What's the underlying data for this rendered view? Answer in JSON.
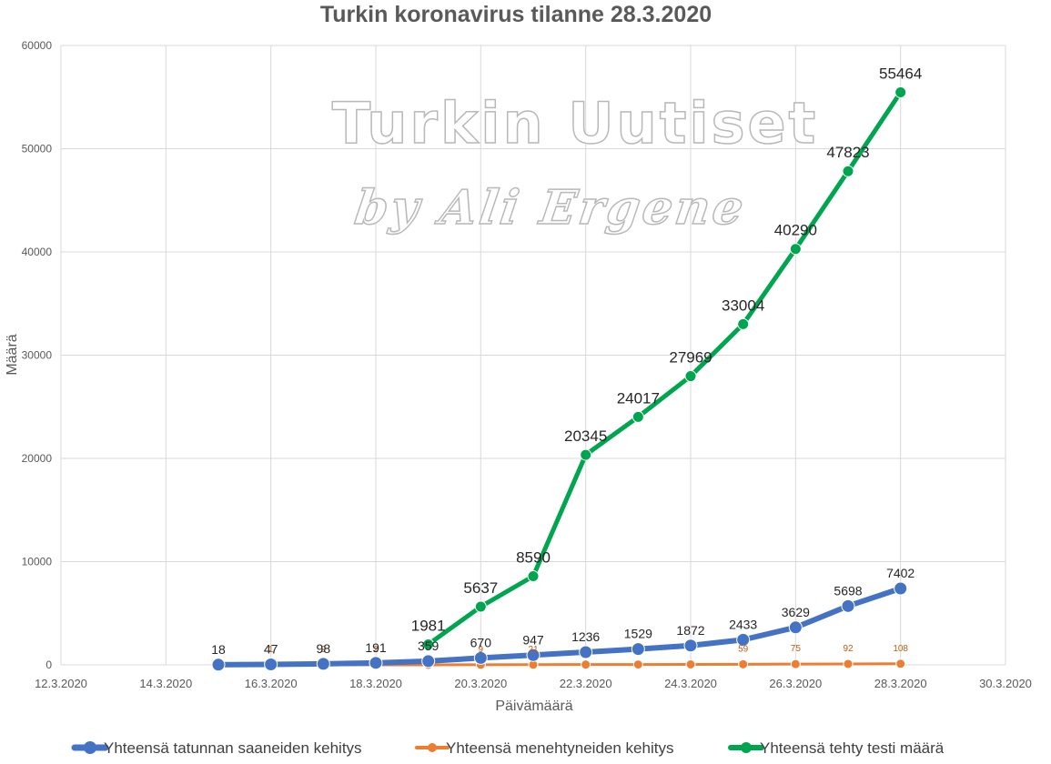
{
  "chart_data": {
    "type": "line",
    "title": "Turkin koronavirus tilanne 28.3.2020",
    "xlabel": "Päivämäärä",
    "ylabel": "Määrä",
    "ylim": [
      0,
      60000
    ],
    "yticks": [
      0,
      10000,
      20000,
      30000,
      40000,
      50000,
      60000
    ],
    "xticks": [
      "12.3.2020",
      "14.3.2020",
      "16.3.2020",
      "18.3.2020",
      "20.3.2020",
      "22.3.2020",
      "24.3.2020",
      "26.3.2020",
      "28.3.2020",
      "30.3.2020"
    ],
    "grid": true,
    "legend_position": "bottom",
    "series": [
      {
        "name": "Yhteensä tatunnan saaneiden kehitys",
        "color": "#4472c4",
        "x": [
          "15.3.2020",
          "16.3.2020",
          "17.3.2020",
          "18.3.2020",
          "19.3.2020",
          "20.3.2020",
          "21.3.2020",
          "22.3.2020",
          "23.3.2020",
          "24.3.2020",
          "25.3.2020",
          "26.3.2020",
          "27.3.2020",
          "28.3.2020"
        ],
        "values": [
          18,
          47,
          98,
          191,
          359,
          670,
          947,
          1236,
          1529,
          1872,
          2433,
          3629,
          5698,
          7402
        ]
      },
      {
        "name": "Yhteensä menehtyneiden kehitys",
        "color": "#ed7d31",
        "x": [
          "16.3.2020",
          "17.3.2020",
          "18.3.2020",
          "19.3.2020",
          "20.3.2020",
          "21.3.2020",
          "22.3.2020",
          "23.3.2020",
          "24.3.2020",
          "25.3.2020",
          "26.3.2020",
          "27.3.2020",
          "28.3.2020"
        ],
        "values": [
          1,
          2,
          2,
          4,
          9,
          21,
          30,
          37,
          44,
          59,
          75,
          92,
          108
        ],
        "labels": [
          "1",
          "2",
          "2",
          "",
          "9",
          "21",
          "",
          "",
          "",
          "59",
          "75",
          "92",
          "108"
        ]
      },
      {
        "name": "Yhteensä tehty testi määrä",
        "color": "#00a550",
        "x": [
          "19.3.2020",
          "20.3.2020",
          "21.3.2020",
          "22.3.2020",
          "23.3.2020",
          "24.3.2020",
          "25.3.2020",
          "26.3.2020",
          "27.3.2020",
          "28.3.2020"
        ],
        "values": [
          1981,
          5637,
          8590,
          20345,
          24017,
          27969,
          33004,
          40290,
          47823,
          55464
        ]
      }
    ]
  },
  "watermark": {
    "line1": "Turkin Uutiset",
    "line2": "by Ali Ergene"
  }
}
